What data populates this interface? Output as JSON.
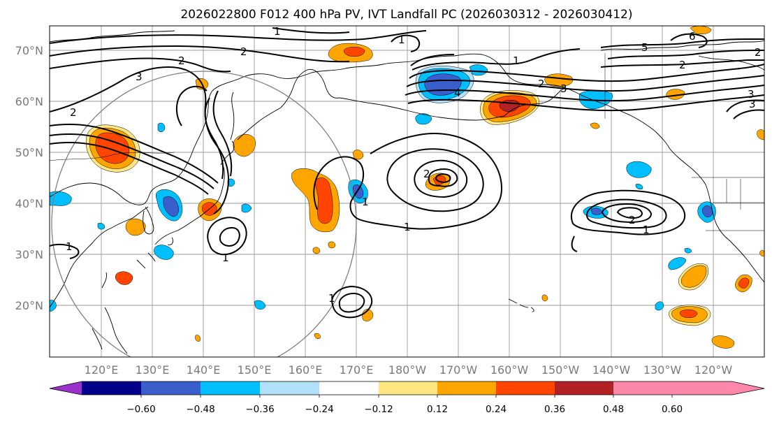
{
  "title": "2026022800 F012 400 hPa PV, IVT Landfall PC (2026030312 - 2026030412)",
  "map": {
    "lat_labels": [
      "70°N",
      "60°N",
      "50°N",
      "40°N",
      "30°N",
      "20°N"
    ],
    "lon_labels": [
      "120°E",
      "130°E",
      "140°E",
      "150°E",
      "160°E",
      "170°E",
      "180°W",
      "170°W",
      "160°W",
      "150°W",
      "140°W",
      "130°W",
      "120°W"
    ],
    "contour_labels": [
      "1",
      "1",
      "2",
      "2",
      "3",
      "2",
      "1",
      "1",
      "5",
      "6",
      "2",
      "3",
      "3",
      "2",
      "4",
      "1",
      "2",
      "1",
      "1",
      "1",
      "2",
      "2",
      "1",
      "3"
    ]
  },
  "colorbar": {
    "ticks": [
      "−0.60",
      "−0.48",
      "−0.36",
      "−0.24",
      "−0.12",
      "0.12",
      "0.24",
      "0.36",
      "0.48",
      "0.60"
    ],
    "colors": [
      "#9932cc",
      "#00008b",
      "#3a5fcd",
      "#00bfff",
      "#b0e0fa",
      "#ffffff",
      "#ffe680",
      "#ffa500",
      "#ff4500",
      "#b22222",
      "#ff88aa"
    ]
  },
  "colors": {
    "pos_low": "#ffe680",
    "pos_mid": "#ffa500",
    "pos_high": "#ff4500",
    "pos_top": "#b22222",
    "neg_low": "#b0e0fa",
    "neg_mid": "#00bfff",
    "neg_high": "#3a5fcd"
  }
}
